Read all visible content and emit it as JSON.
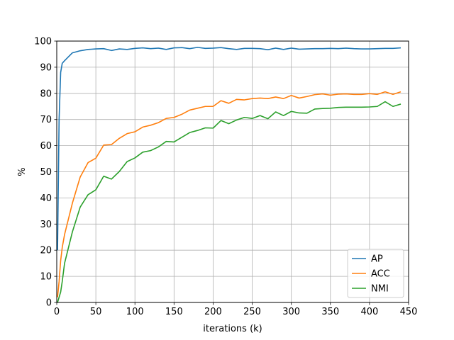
{
  "chart_data": {
    "type": "line",
    "title": "",
    "xlabel": "iterations (k)",
    "ylabel": "%",
    "xlim": [
      0,
      450
    ],
    "ylim": [
      0,
      100
    ],
    "xticks": [
      0,
      50,
      100,
      150,
      200,
      250,
      300,
      350,
      400,
      450
    ],
    "yticks": [
      0,
      10,
      20,
      30,
      40,
      50,
      60,
      70,
      80,
      90,
      100
    ],
    "grid": true,
    "legend_position": "lower-right",
    "series": [
      {
        "name": "AP",
        "color": "#1f77b4",
        "x": [
          1,
          3,
          5,
          7,
          10,
          20,
          30,
          40,
          50,
          60,
          70,
          80,
          90,
          100,
          110,
          120,
          130,
          140,
          150,
          160,
          170,
          180,
          190,
          200,
          210,
          220,
          230,
          240,
          250,
          260,
          270,
          280,
          290,
          300,
          310,
          320,
          330,
          340,
          350,
          360,
          370,
          380,
          390,
          400,
          410,
          420,
          430,
          440
        ],
        "y": [
          20,
          70,
          88,
          91.5,
          92.5,
          95.5,
          96.3,
          96.8,
          97.0,
          97.1,
          96.4,
          97.0,
          96.8,
          97.2,
          97.4,
          97.1,
          97.3,
          96.8,
          97.4,
          97.5,
          97.1,
          97.6,
          97.2,
          97.3,
          97.5,
          97.1,
          96.8,
          97.2,
          97.2,
          97.1,
          96.7,
          97.3,
          96.8,
          97.3,
          96.9,
          97.0,
          97.1,
          97.1,
          97.2,
          97.1,
          97.3,
          97.1,
          97.0,
          97.0,
          97.1,
          97.2,
          97.2,
          97.4
        ]
      },
      {
        "name": "ACC",
        "color": "#ff7f0e",
        "x": [
          1,
          3,
          5,
          7,
          10,
          20,
          30,
          40,
          50,
          60,
          70,
          80,
          90,
          100,
          110,
          120,
          130,
          140,
          150,
          160,
          170,
          180,
          190,
          200,
          210,
          220,
          230,
          240,
          250,
          260,
          270,
          280,
          290,
          300,
          310,
          320,
          330,
          340,
          350,
          360,
          370,
          380,
          390,
          400,
          410,
          420,
          430,
          440
        ],
        "y": [
          2,
          8,
          16,
          21,
          26,
          38,
          48,
          53.5,
          55.2,
          60.2,
          60.4,
          62.8,
          64.6,
          65.3,
          67.1,
          67.8,
          68.8,
          70.4,
          70.8,
          72.0,
          73.6,
          74.3,
          75.0,
          75.0,
          77.2,
          76.2,
          77.7,
          77.5,
          78.0,
          78.2,
          78.0,
          78.6,
          78.0,
          79.2,
          78.2,
          78.8,
          79.5,
          79.8,
          79.3,
          79.7,
          79.8,
          79.6,
          79.6,
          79.9,
          79.6,
          80.6,
          79.6,
          80.6
        ]
      },
      {
        "name": "NMI",
        "color": "#2ca02c",
        "x": [
          1,
          3,
          5,
          7,
          10,
          20,
          30,
          40,
          50,
          60,
          70,
          80,
          90,
          100,
          110,
          120,
          130,
          140,
          150,
          160,
          170,
          180,
          190,
          200,
          210,
          220,
          230,
          240,
          250,
          260,
          270,
          280,
          290,
          300,
          310,
          320,
          330,
          340,
          350,
          360,
          370,
          380,
          390,
          400,
          410,
          420,
          430,
          440
        ],
        "y": [
          0,
          2,
          4,
          8,
          15,
          27,
          36.5,
          41.2,
          43.1,
          48.3,
          47.2,
          50.1,
          53.9,
          55.3,
          57.5,
          58.1,
          59.5,
          61.6,
          61.4,
          63.2,
          65.0,
          65.8,
          66.8,
          66.7,
          69.6,
          68.4,
          69.8,
          70.8,
          70.4,
          71.5,
          70.3,
          72.9,
          71.5,
          73.1,
          72.5,
          72.4,
          74.0,
          74.2,
          74.3,
          74.6,
          74.7,
          74.7,
          74.7,
          74.8,
          75.0,
          76.8,
          75.0,
          75.9
        ]
      }
    ]
  }
}
